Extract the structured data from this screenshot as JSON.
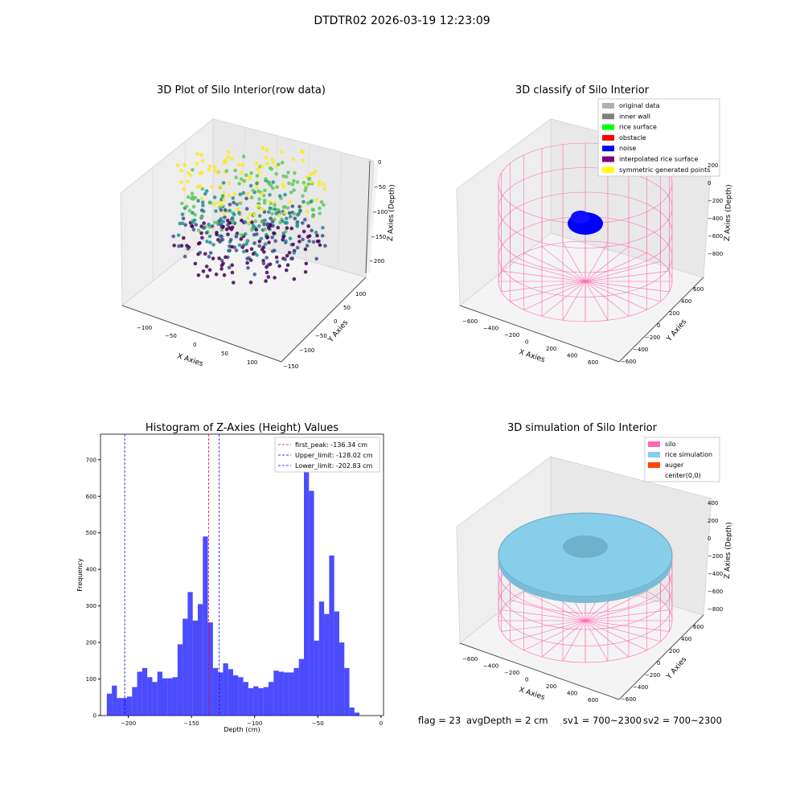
{
  "suptitle": "DTDTR02 2026-03-19 12:23:09",
  "panels": {
    "raw": {
      "title": "3D Plot of Silo Interior(row data)",
      "xlabel": "X Axies",
      "ylabel": "Y Axies",
      "zlabel": "Z Axies (Depth)",
      "xticks": [
        "−100",
        "−50",
        "0",
        "50",
        "100"
      ],
      "yticks": [
        "−150",
        "−100",
        "−50",
        "0",
        "50",
        "100"
      ],
      "zticks": [
        "0",
        "−50",
        "−100",
        "−150",
        "−200"
      ],
      "colormap": [
        "#440154",
        "#3b528b",
        "#21918c",
        "#5ec962",
        "#fde725"
      ]
    },
    "classify": {
      "title": "3D classify of Silo Interior",
      "xlabel": "X Axies",
      "ylabel": "Y Axies",
      "zlabel": "Z Axies (Depth)",
      "xticks": [
        "−600",
        "−400",
        "−200",
        "0",
        "200",
        "400",
        "600"
      ],
      "yticks": [
        "−600",
        "−400",
        "−200",
        "0",
        "200",
        "400",
        "600"
      ],
      "zticks": [
        "200",
        "0",
        "−200",
        "−400",
        "−600",
        "−800"
      ],
      "legend": [
        {
          "label": "original data",
          "color": "#b0b0b0"
        },
        {
          "label": "inner wall",
          "color": "#808080"
        },
        {
          "label": "rice surface",
          "color": "#00ff00"
        },
        {
          "label": "obstacle",
          "color": "#ff0000"
        },
        {
          "label": "noise",
          "color": "#0000ff"
        },
        {
          "label": "interpolated rice surface",
          "color": "#800080"
        },
        {
          "label": "symmetric generated points",
          "color": "#ffff00"
        }
      ]
    },
    "simulation": {
      "title": "3D simulation of Silo Interior",
      "xlabel": "X Axies",
      "ylabel": "Y Axies",
      "zlabel": "Z Axies (Depth)",
      "xticks": [
        "−600",
        "−400",
        "−200",
        "0",
        "200",
        "400",
        "600"
      ],
      "yticks": [
        "−600",
        "−400",
        "−200",
        "0",
        "200",
        "400",
        "600"
      ],
      "zticks": [
        "400",
        "200",
        "0",
        "−200",
        "−400",
        "−600",
        "−800"
      ],
      "legend": [
        {
          "label": "silo",
          "color": "#ff69b4"
        },
        {
          "label": "rice simulation",
          "color": "#87ceeb"
        },
        {
          "label": "auger",
          "color": "#ff4500"
        },
        {
          "label": "center(0,0)",
          "color": "#ffffff"
        }
      ]
    }
  },
  "status": {
    "flag": "flag = 23",
    "avg_depth": "avgDepth = 2 cm",
    "sv1": "sv1 = 700~2300",
    "sv2": "sv2 = 700~2300"
  },
  "chart_data": [
    {
      "type": "scatter",
      "title": "3D Plot of Silo Interior(row data)",
      "xlabel": "X Axies",
      "ylabel": "Y Axies",
      "zlabel": "Z Axies (Depth)",
      "xlim": [
        -130,
        130
      ],
      "ylim": [
        -160,
        130
      ],
      "zlim": [
        -230,
        0
      ],
      "colormap": "viridis"
    },
    {
      "type": "scatter",
      "title": "3D classify of Silo Interior",
      "xlabel": "X Axies",
      "ylabel": "Y Axies",
      "zlabel": "Z Axies (Depth)",
      "xlim": [
        -650,
        650
      ],
      "ylim": [
        -650,
        650
      ],
      "zlim": [
        -900,
        250
      ],
      "legend": [
        "original data",
        "inner wall",
        "rice surface",
        "obstacle",
        "noise",
        "interpolated rice surface",
        "symmetric generated points"
      ],
      "legend_position": "top-right"
    },
    {
      "type": "bar",
      "title": "Histogram of Z-Axies (Height) Values",
      "xlabel": "Depth (cm)",
      "ylabel": "Frequency",
      "xlim": [
        -222,
        2
      ],
      "ylim": [
        0,
        770
      ],
      "xticks": [
        -200,
        -150,
        -100,
        -50,
        0
      ],
      "yticks": [
        0,
        100,
        200,
        300,
        400,
        500,
        600,
        700
      ],
      "bin_start": -217,
      "bin_width": 4,
      "values": [
        60,
        82,
        48,
        48,
        52,
        78,
        120,
        130,
        105,
        92,
        120,
        102,
        102,
        105,
        195,
        265,
        338,
        260,
        305,
        490,
        255,
        130,
        118,
        143,
        127,
        110,
        105,
        92,
        75,
        80,
        75,
        78,
        92,
        123,
        120,
        118,
        118,
        130,
        155,
        720,
        615,
        205,
        312,
        278,
        438,
        285,
        200,
        130,
        22,
        8
      ],
      "color": "#0000ff",
      "vlines": [
        {
          "label": "first_peak: -136.34 cm",
          "x": -136.34,
          "color": "#ff0000"
        },
        {
          "label": "Upper_limit: -128.02 cm",
          "x": -128.02,
          "color": "#0000ff"
        },
        {
          "label": "Lower_limit: -202.83 cm",
          "x": -202.83,
          "color": "#0000ff"
        }
      ],
      "legend_position": "top-right"
    },
    {
      "type": "surface",
      "title": "3D simulation of Silo Interior",
      "xlabel": "X Axies",
      "ylabel": "Y Axies",
      "zlabel": "Z Axies (Depth)",
      "xlim": [
        -650,
        650
      ],
      "ylim": [
        -650,
        650
      ],
      "zlim": [
        -900,
        450
      ],
      "legend": [
        "silo",
        "rice simulation",
        "auger",
        "center(0,0)"
      ],
      "legend_position": "top-right"
    }
  ]
}
